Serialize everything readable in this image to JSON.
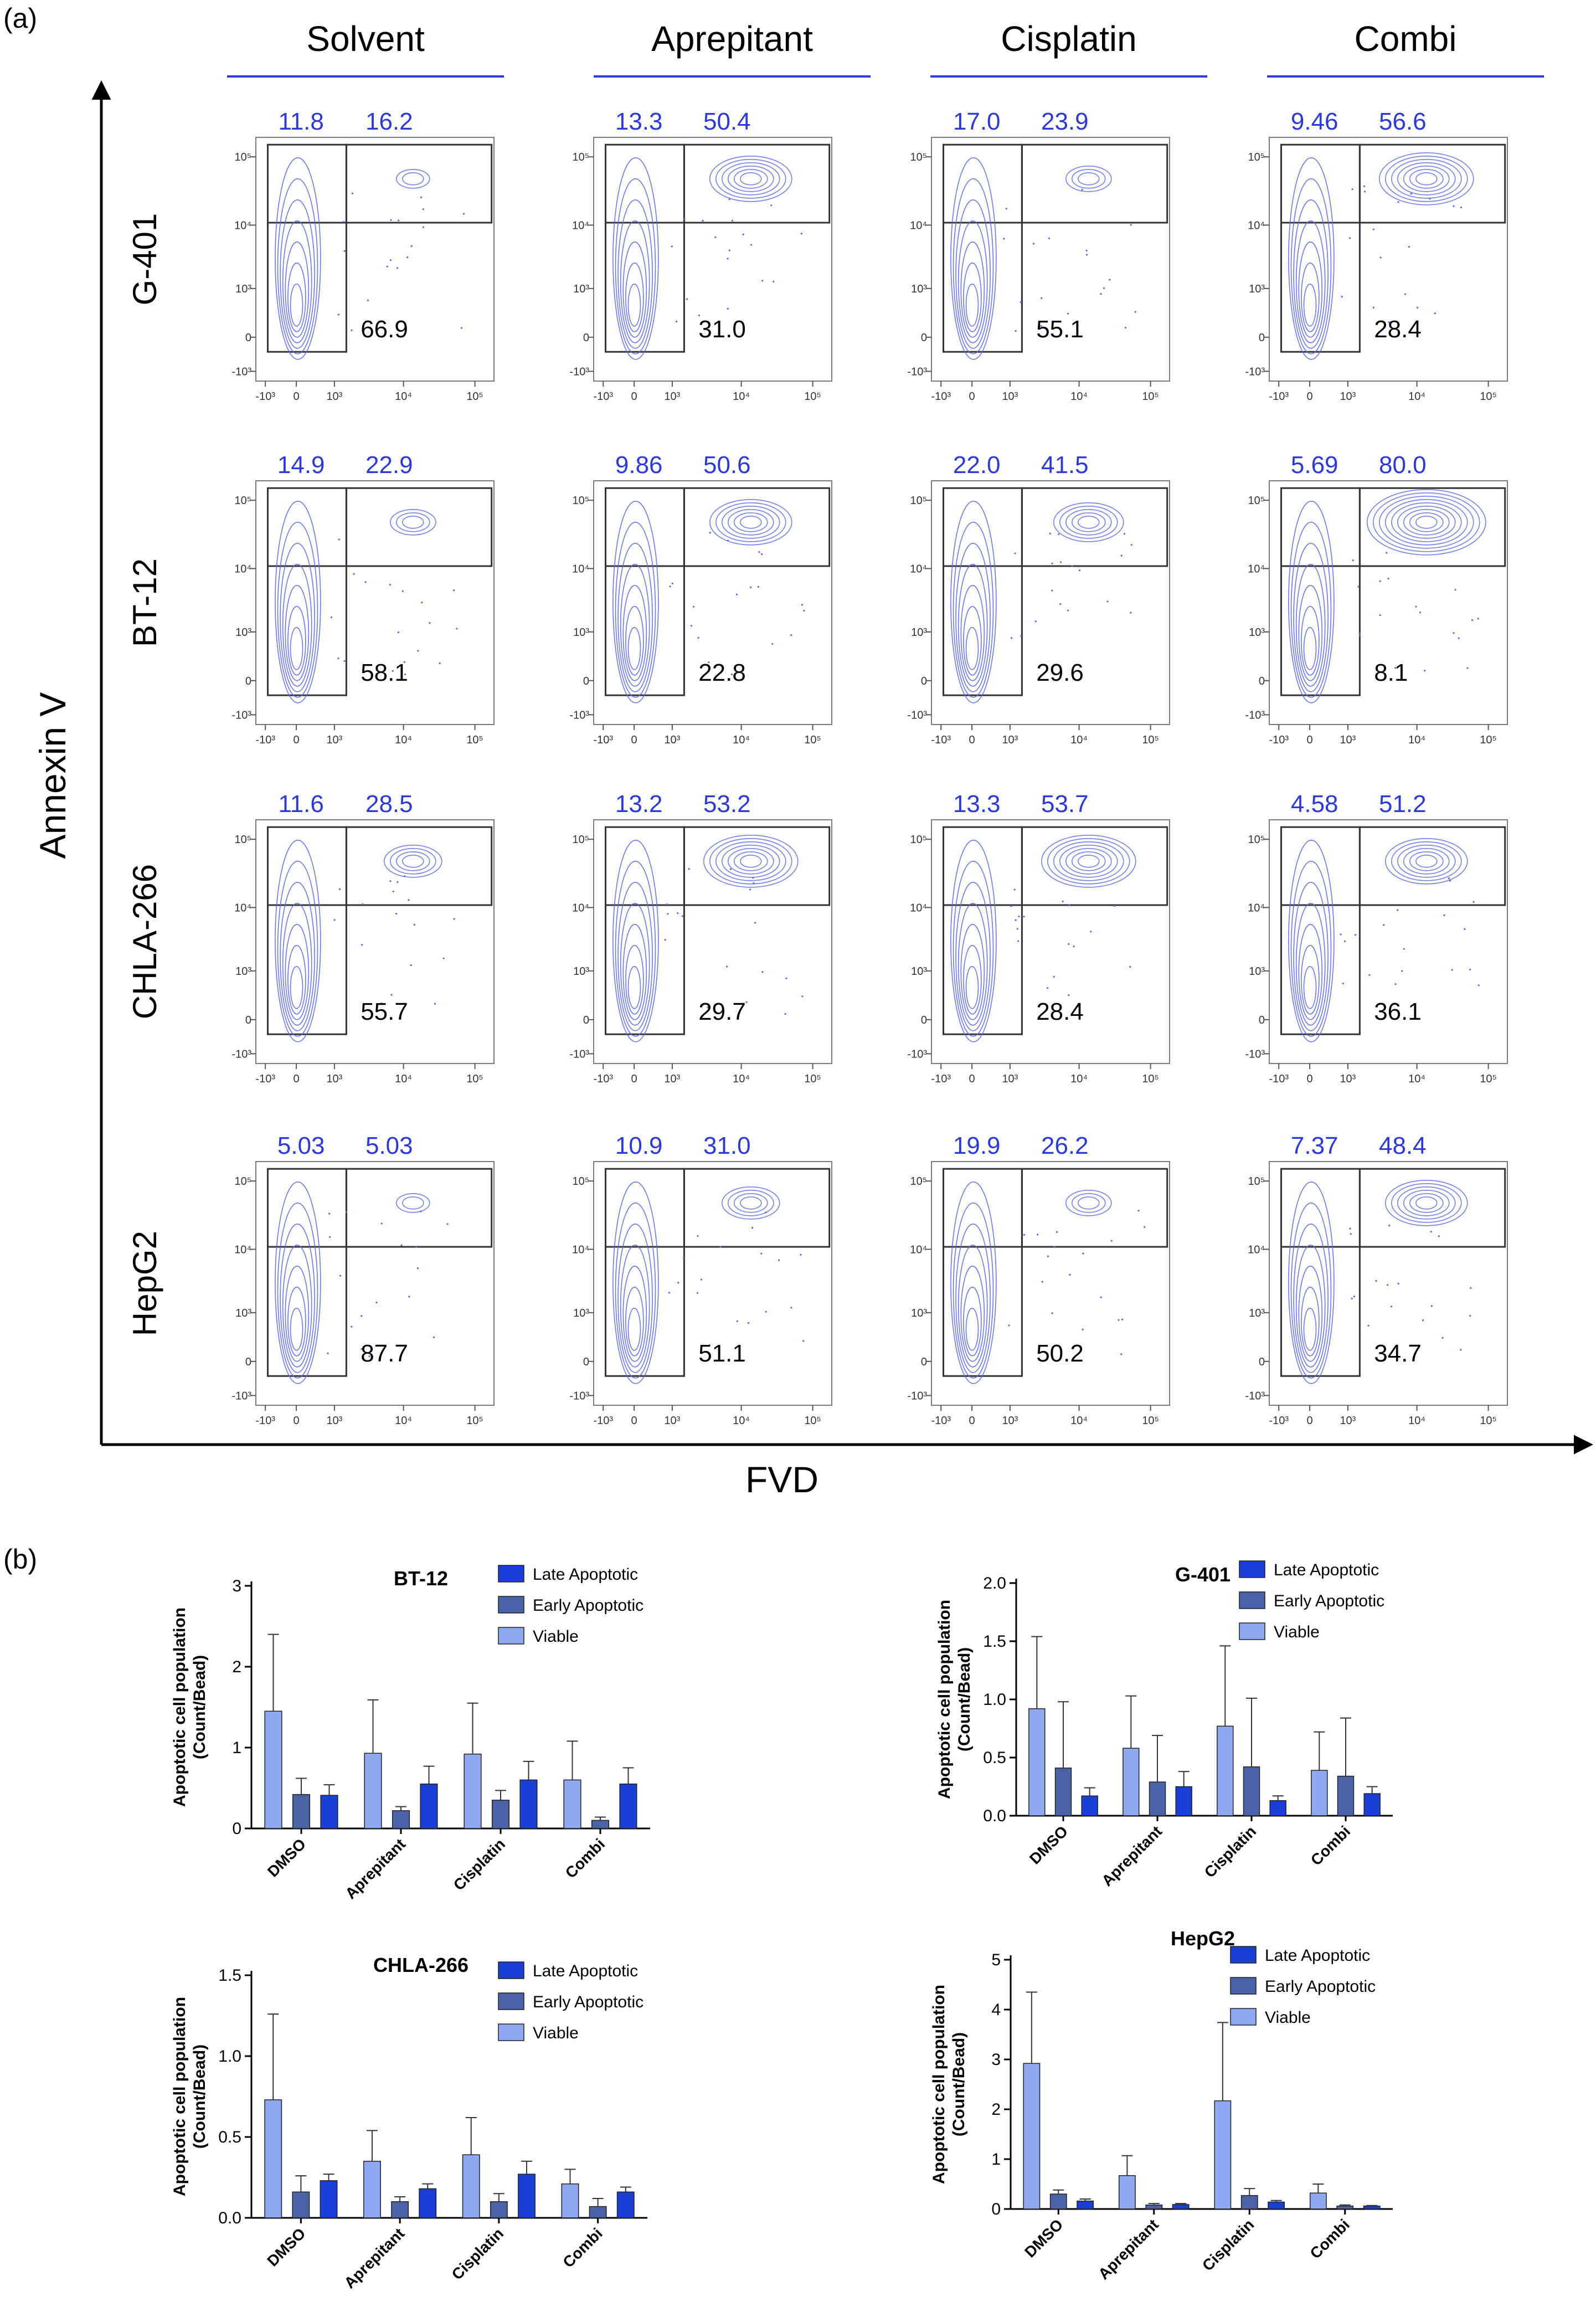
{
  "panel_labels": {
    "a": "(a)",
    "b": "(b)"
  },
  "flow": {
    "y_axis_label": "Annexin V",
    "x_axis_label": "FVD",
    "tick_labels": [
      "-10³",
      "0",
      "10³",
      "10⁴",
      "10⁵"
    ],
    "colors": {
      "contour": "#5b67ee",
      "blue_text": "#2a38e0",
      "gate": "#333333",
      "header_line": "#2a38e0"
    },
    "columns": [
      "Solvent",
      "Aprepitant",
      "Cisplatin",
      "Combi"
    ],
    "rows": [
      "G-401",
      "BT-12",
      "CHLA-266",
      "HepG2"
    ]
  },
  "chart_data": [
    {
      "type": "flow_cytometry_contour_grid",
      "x_variable": "FVD",
      "y_variable": "Annexin V",
      "columns": [
        "Solvent",
        "Aprepitant",
        "Cisplatin",
        "Combi"
      ],
      "rows": [
        {
          "name": "G-401",
          "cells": [
            {
              "early": "11.8",
              "late": "16.2",
              "viable": "66.9"
            },
            {
              "early": "13.3",
              "late": "50.4",
              "viable": "31.0"
            },
            {
              "early": "17.0",
              "late": "23.9",
              "viable": "55.1"
            },
            {
              "early": "9.46",
              "late": "56.6",
              "viable": "28.4"
            }
          ]
        },
        {
          "name": "BT-12",
          "cells": [
            {
              "early": "14.9",
              "late": "22.9",
              "viable": "58.1"
            },
            {
              "early": "9.86",
              "late": "50.6",
              "viable": "22.8"
            },
            {
              "early": "22.0",
              "late": "41.5",
              "viable": "29.6"
            },
            {
              "early": "5.69",
              "late": "80.0",
              "viable": "8.1"
            }
          ]
        },
        {
          "name": "CHLA-266",
          "cells": [
            {
              "early": "11.6",
              "late": "28.5",
              "viable": "55.7"
            },
            {
              "early": "13.2",
              "late": "53.2",
              "viable": "29.7"
            },
            {
              "early": "13.3",
              "late": "53.7",
              "viable": "28.4"
            },
            {
              "early": "4.58",
              "late": "51.2",
              "viable": "36.1"
            }
          ]
        },
        {
          "name": "HepG2",
          "cells": [
            {
              "early": "5.03",
              "late": "5.03",
              "viable": "87.7"
            },
            {
              "early": "10.9",
              "late": "31.0",
              "viable": "51.1"
            },
            {
              "early": "19.9",
              "late": "26.2",
              "viable": "50.2"
            },
            {
              "early": "7.37",
              "late": "48.4",
              "viable": "34.7"
            }
          ]
        }
      ]
    },
    {
      "type": "bar",
      "title": "BT-12",
      "ylabel": "Apoptotic cell population\n(Count/Bead)",
      "categories": [
        "DMSO",
        "Aprepitant",
        "Cisplatin",
        "Combi"
      ],
      "ylim": [
        0,
        3
      ],
      "yticks": [
        "0",
        "1",
        "2",
        "3"
      ],
      "legend_position": "top-right",
      "series": [
        {
          "name": "Late Apoptotic",
          "color": "#1a3fd6",
          "values": [
            0.41,
            0.55,
            0.6,
            0.55
          ],
          "errors": [
            0.13,
            0.22,
            0.23,
            0.2
          ]
        },
        {
          "name": "Early Apoptotic",
          "color": "#4a63a8",
          "values": [
            0.42,
            0.22,
            0.35,
            0.1
          ],
          "errors": [
            0.2,
            0.05,
            0.12,
            0.04
          ]
        },
        {
          "name": "Viable",
          "color": "#8fa8f2",
          "values": [
            1.45,
            0.93,
            0.92,
            0.6
          ],
          "errors": [
            0.95,
            0.66,
            0.63,
            0.48
          ]
        }
      ]
    },
    {
      "type": "bar",
      "title": "G-401",
      "ylabel": "Apoptotic cell population\n(Count/Bead)",
      "categories": [
        "DMSO",
        "Aprepitant",
        "Cisplatin",
        "Combi"
      ],
      "ylim": [
        0,
        2
      ],
      "yticks": [
        "0.0",
        "0.5",
        "1.0",
        "1.5",
        "2.0"
      ],
      "legend_position": "top-right",
      "series": [
        {
          "name": "Late Apoptotic",
          "color": "#1a3fd6",
          "values": [
            0.17,
            0.25,
            0.13,
            0.19
          ],
          "errors": [
            0.07,
            0.13,
            0.04,
            0.06
          ]
        },
        {
          "name": "Early Apoptotic",
          "color": "#4a63a8",
          "values": [
            0.41,
            0.29,
            0.42,
            0.34
          ],
          "errors": [
            0.57,
            0.4,
            0.59,
            0.5
          ]
        },
        {
          "name": "Viable",
          "color": "#8fa8f2",
          "values": [
            0.92,
            0.58,
            0.77,
            0.39
          ],
          "errors": [
            0.62,
            0.45,
            0.69,
            0.33
          ]
        }
      ]
    },
    {
      "type": "bar",
      "title": "CHLA-266",
      "ylabel": "Apoptotic cell population\n(Count/Bead)",
      "categories": [
        "DMSO",
        "Aprepitant",
        "Cisplatin",
        "Combi"
      ],
      "ylim": [
        0,
        1.5
      ],
      "yticks": [
        "0.0",
        "0.5",
        "1.0",
        "1.5"
      ],
      "legend_position": "top-right",
      "series": [
        {
          "name": "Late Apoptotic",
          "color": "#1a3fd6",
          "values": [
            0.23,
            0.18,
            0.27,
            0.16
          ],
          "errors": [
            0.04,
            0.03,
            0.08,
            0.03
          ]
        },
        {
          "name": "Early Apoptotic",
          "color": "#4a63a8",
          "values": [
            0.16,
            0.1,
            0.1,
            0.07
          ],
          "errors": [
            0.1,
            0.03,
            0.05,
            0.05
          ]
        },
        {
          "name": "Viable",
          "color": "#8fa8f2",
          "values": [
            0.73,
            0.35,
            0.39,
            0.21
          ],
          "errors": [
            0.53,
            0.19,
            0.23,
            0.09
          ]
        }
      ]
    },
    {
      "type": "bar",
      "title": "HepG2",
      "ylabel": "Apoptotic cell population\n(Count/Bead)",
      "categories": [
        "DMSO",
        "Aprepitant",
        "Cisplatin",
        "Combi"
      ],
      "ylim": [
        0,
        5
      ],
      "yticks": [
        "0",
        "1",
        "2",
        "3",
        "4",
        "5"
      ],
      "legend_position": "top-right",
      "series": [
        {
          "name": "Late Apoptotic",
          "color": "#1a3fd6",
          "values": [
            0.16,
            0.09,
            0.14,
            0.06
          ],
          "errors": [
            0.04,
            0.02,
            0.03,
            0.01
          ]
        },
        {
          "name": "Early Apoptotic",
          "color": "#4a63a8",
          "values": [
            0.3,
            0.08,
            0.27,
            0.06
          ],
          "errors": [
            0.08,
            0.03,
            0.14,
            0.02
          ]
        },
        {
          "name": "Viable",
          "color": "#8fa8f2",
          "values": [
            2.92,
            0.67,
            2.17,
            0.32
          ],
          "errors": [
            1.43,
            0.4,
            1.57,
            0.18
          ]
        }
      ]
    }
  ]
}
